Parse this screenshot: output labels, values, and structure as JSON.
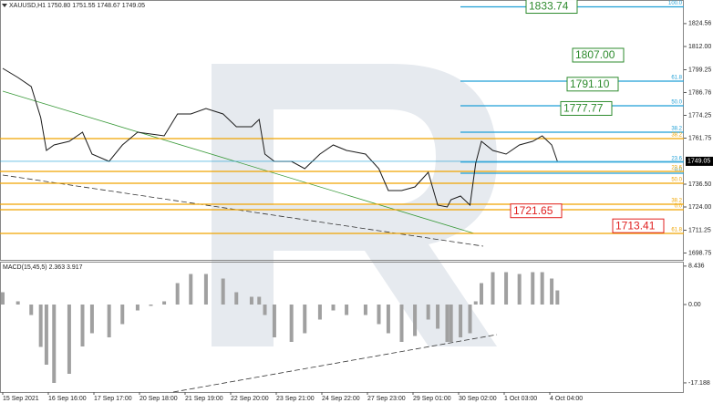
{
  "chart_data": [
    {
      "type": "line",
      "title": "XAUUSD,H1  1750.80 1751.55 1748.67 1749.05",
      "x": [
        0,
        8,
        15,
        20,
        23,
        27,
        35,
        42,
        47,
        56,
        63,
        71,
        78,
        85,
        92,
        99,
        107,
        116,
        123,
        131,
        135,
        138,
        143,
        152,
        159,
        167,
        174,
        181,
        191,
        198,
        203,
        210,
        217,
        224,
        229,
        234,
        236,
        241,
        246,
        249,
        252,
        258,
        265,
        272,
        279,
        284,
        289,
        292
      ],
      "values": [
        1800,
        1795,
        1790,
        1773,
        1755,
        1758,
        1760,
        1765,
        1753,
        1749,
        1758,
        1765,
        1764,
        1763,
        1775,
        1775,
        1778,
        1775,
        1768,
        1768,
        1772,
        1753,
        1749,
        1749,
        1745,
        1753,
        1758,
        1755,
        1753,
        1745,
        1733,
        1733,
        1735,
        1743,
        1725,
        1724,
        1728,
        1730,
        1725,
        1748,
        1760,
        1755,
        1753,
        1758,
        1760,
        1763,
        1758,
        1749
      ],
      "color": "#1a1a1a",
      "xlim": [
        0,
        360
      ],
      "ylim": [
        1695.5,
        1836
      ],
      "yticks": [
        1698.75,
        1711.25,
        {
          "value": 1724,
          "label": "1724.00"
        },
        {
          "value": 1736.5,
          "label": "1736.50"
        },
        1761.75,
        1774.25,
        1786.76,
        1799.25,
        {
          "value": 1812,
          "label": "1812.00"
        },
        1824.56
      ],
      "last_price": 1749.05,
      "fib_upper": {
        "color": "#1e9fd6",
        "levels": [
          {
            "price": 1833.74,
            "ratio": "100.0"
          },
          {
            "price": 1793,
            "ratio": "61.8"
          },
          {
            "price": 1779.5,
            "ratio": "50.0"
          },
          {
            "price": 1765,
            "ratio": "38.2"
          },
          {
            "price": 1748.6,
            "ratio": "23.6"
          },
          {
            "price": 1742.5,
            "ratio": "0.0"
          }
        ]
      },
      "fib_lower": {
        "color": "#f0a500",
        "levels": [
          {
            "price": 1761.5,
            "ratio": "38.2"
          },
          {
            "price": 1743.5,
            "ratio": "23.6"
          },
          {
            "price": 1737,
            "ratio": "50.0"
          },
          {
            "price": 1725.5,
            "ratio": "38.2"
          },
          {
            "price": 1722.5,
            "ratio": "0.0"
          },
          {
            "price": 1709.5,
            "ratio": "61.8"
          }
        ]
      },
      "price_labels": [
        1833.74,
        {
          "value": 1807,
          "label": "1807.00"
        },
        {
          "value": 1791.1,
          "label": "1791.10"
        },
        1777.77,
        1721.65,
        1713.41
      ],
      "price_label_colors": [
        "#2e8b2e",
        "#2e8b2e",
        "#2e8b2e",
        "#2e8b2e",
        "#e02020",
        "#e02020"
      ]
    },
    {
      "type": "bar",
      "title": "MACD(15,45,5) 2.363 3.917",
      "x": [
        0,
        8,
        15,
        20,
        23,
        27,
        35,
        42,
        47,
        56,
        63,
        71,
        78,
        85,
        92,
        99,
        107,
        116,
        123,
        131,
        135,
        138,
        143,
        152,
        159,
        167,
        174,
        181,
        191,
        198,
        203,
        210,
        217,
        224,
        229,
        234,
        236,
        241,
        246,
        249,
        252,
        258,
        265,
        272,
        279,
        284,
        289,
        292
      ],
      "values": [
        2.7,
        0.7,
        -2.3,
        -9.3,
        -13.2,
        -17.2,
        -15.2,
        -9.2,
        -6.3,
        -7.2,
        -4.3,
        -1.3,
        -0.3,
        0.7,
        4.7,
        6.7,
        6.7,
        5.7,
        2.7,
        1.7,
        1.7,
        -2.3,
        -7.2,
        -8.2,
        -6.3,
        -3.3,
        -1.3,
        -2.3,
        -2.3,
        -4.3,
        -6.3,
        -8.2,
        -6.9,
        -3.3,
        -5.3,
        -8.2,
        -8.2,
        -7.2,
        -6.3,
        0.7,
        4.7,
        7.1,
        7.1,
        6.7,
        7.1,
        7.1,
        5.7,
        3.1
      ],
      "color": "#a0a0a0",
      "xlim": [
        0,
        360
      ],
      "ylim": [
        -19.2,
        9.2
      ],
      "yticks": [
        8.436,
        {
          "value": 0,
          "label": "0.00"
        },
        -17.188
      ],
      "xticks": [
        {
          "value": 0,
          "label": "15 Sep 2021"
        },
        {
          "value": 24,
          "label": "16 Sep 16:00"
        },
        {
          "value": 48,
          "label": "17 Sep 17:00"
        },
        {
          "value": 72,
          "label": "20 Sep 18:00"
        },
        {
          "value": 96,
          "label": "21 Sep 19:00"
        },
        {
          "value": 120,
          "label": "22 Sep 20:00"
        },
        {
          "value": 144,
          "label": "23 Sep 21:00"
        },
        {
          "value": 168,
          "label": "24 Sep 22:00"
        },
        {
          "value": 192,
          "label": "27 Sep 23:00"
        },
        {
          "value": 216,
          "label": "29 Sep 01:00"
        },
        {
          "value": 240,
          "label": "30 Sep 02:00"
        },
        {
          "value": 264,
          "label": "1 Oct 03:00"
        },
        {
          "value": 288,
          "label": "4 Oct 04:00"
        }
      ]
    }
  ]
}
